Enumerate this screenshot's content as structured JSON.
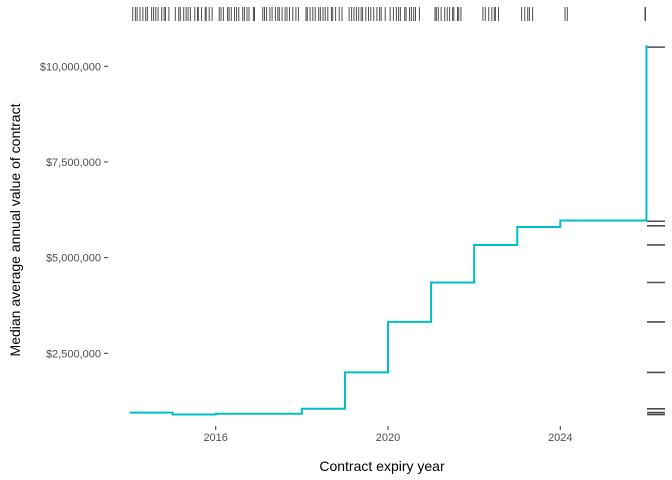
{
  "chart_data": {
    "type": "line",
    "subtype": "step",
    "title": "",
    "xlabel": "Contract expiry year",
    "ylabel": "Median average annual value of contract",
    "xlim": [
      2013.5,
      2026.5
    ],
    "ylim": [
      600000,
      11000000
    ],
    "x_ticks": [
      2016,
      2020,
      2024
    ],
    "x_tick_labels": [
      "2016",
      "2020",
      "2024"
    ],
    "y_ticks": [
      2500000,
      5000000,
      7500000,
      10000000
    ],
    "y_tick_labels": [
      "$2,500,000",
      "$5,000,000",
      "$7,500,000",
      "$10,000,000"
    ],
    "grid": false,
    "line_color": "#00BFC4",
    "rug_color": "#4d4d4d",
    "series": [
      {
        "x": [
          2014,
          2015,
          2016,
          2017,
          2018,
          2019,
          2020,
          2021,
          2022,
          2023,
          2024,
          2025,
          2026
        ],
        "values": [
          950000,
          900000,
          920000,
          920000,
          1050000,
          2000000,
          3320000,
          4350000,
          5330000,
          5800000,
          5970000,
          5970000,
          10550000
        ]
      }
    ],
    "rug_x_ranges": [
      [
        2014.05,
        2014.95
      ],
      [
        2015.05,
        2015.95
      ],
      [
        2016.05,
        2016.95
      ],
      [
        2017.05,
        2017.95
      ],
      [
        2018.05,
        2018.95
      ],
      [
        2019.05,
        2019.95
      ],
      [
        2020.05,
        2020.75
      ],
      [
        2021.05,
        2021.75
      ],
      [
        2022.2,
        2022.6
      ],
      [
        2023.1,
        2023.4
      ],
      [
        2024.1,
        2024.2
      ],
      [
        2025.95,
        2026.0
      ]
    ],
    "rug_y_values": [
      10500000,
      5950000,
      5830000,
      5330000,
      4350000,
      3320000,
      2000000,
      1050000,
      950000,
      900000
    ]
  }
}
